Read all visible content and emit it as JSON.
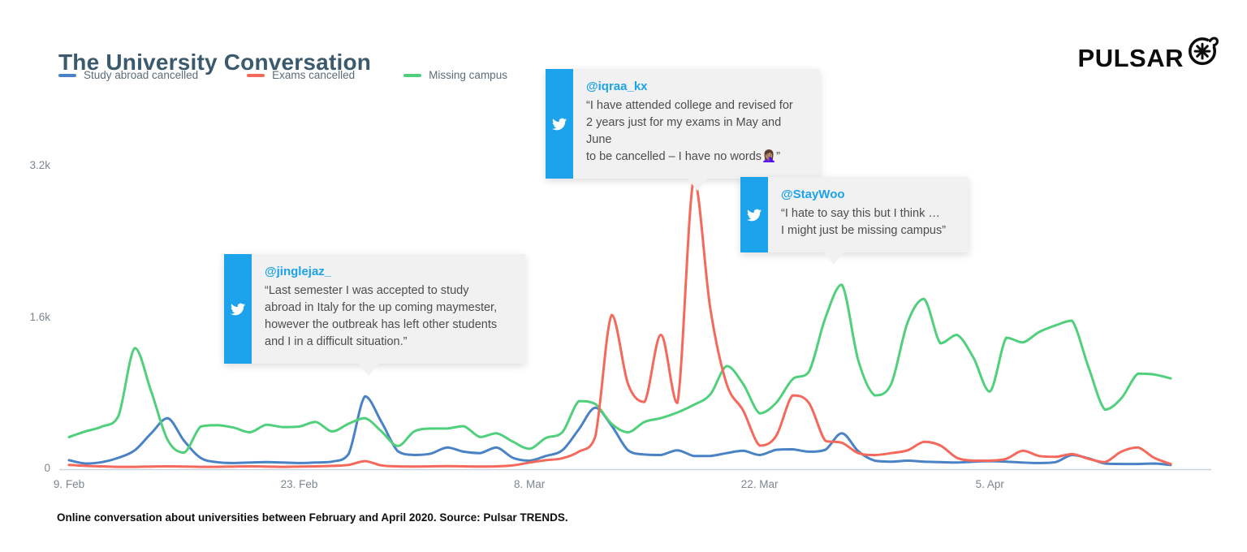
{
  "title": "The University Conversation",
  "logo": {
    "text": "PULSAR",
    "mark_icon": "asterisk-circle-icon"
  },
  "colors": {
    "title_ink": "#3b5a6e",
    "twitter_blue": "#1ca3ec",
    "axis_line": "#c9d6e2",
    "study_abroad_blue": "#4a82c6",
    "exams_red": "#f4695c",
    "missing_campus_green": "#50d07c"
  },
  "tweets": [
    {
      "handle": "@iqraa_kx",
      "text": "“I have attended college and revised for\n2 years just for my exams in May and June\nto be cancelled – I have no words🤦🏽‍♀️”"
    },
    {
      "handle": "@StayWoo",
      "text": "“I hate to say this but I think …\nI might just be missing campus”"
    },
    {
      "handle": "@jinglejaz_",
      "text": "“Last semester I was accepted to study\nabroad in Italy for the up coming maymester,\nhowever the outbreak has left other students\nand I in a difficult situation.”"
    }
  ],
  "caption": "Online conversation about universities between February and April 2020. Source: Pulsar TRENDS.",
  "chart_data": {
    "type": "line",
    "title": "The University Conversation",
    "x_start_date": "2020-02-09",
    "x_step_days": 1,
    "x_ticks": [
      {
        "day": 0,
        "label": "9. Feb"
      },
      {
        "day": 14,
        "label": "23. Feb"
      },
      {
        "day": 28,
        "label": "8. Mar"
      },
      {
        "day": 42,
        "label": "22. Mar"
      },
      {
        "day": 56,
        "label": "5. Apr"
      }
    ],
    "y_ticks": [
      {
        "value": 0,
        "label": "0"
      },
      {
        "value": 1600,
        "label": "1.6k"
      },
      {
        "value": 3200,
        "label": "3.2k"
      }
    ],
    "ylim": [
      0,
      3200
    ],
    "grid": false,
    "legend_position": "top-left",
    "series": [
      {
        "name": "Study abroad cancelled",
        "color": "#4a82c6",
        "values": [
          95,
          60,
          75,
          120,
          200,
          380,
          540,
          300,
          120,
          75,
          65,
          70,
          75,
          70,
          65,
          70,
          80,
          160,
          770,
          500,
          190,
          150,
          165,
          230,
          185,
          170,
          230,
          120,
          90,
          140,
          200,
          420,
          650,
          460,
          200,
          155,
          150,
          200,
          140,
          140,
          170,
          195,
          150,
          205,
          210,
          185,
          205,
          380,
          190,
          90,
          80,
          90,
          80,
          75,
          70,
          80,
          85,
          80,
          70,
          65,
          75,
          150,
          115,
          60,
          55,
          55,
          60,
          45
        ]
      },
      {
        "name": "Exams cancelled",
        "color": "#f4695c",
        "values": [
          45,
          35,
          30,
          25,
          25,
          28,
          30,
          28,
          25,
          25,
          28,
          30,
          28,
          25,
          28,
          30,
          35,
          45,
          85,
          40,
          30,
          28,
          30,
          32,
          30,
          28,
          30,
          40,
          70,
          95,
          115,
          185,
          340,
          1630,
          900,
          710,
          1420,
          700,
          3070,
          1700,
          900,
          620,
          250,
          350,
          780,
          700,
          300,
          280,
          170,
          150,
          170,
          200,
          290,
          250,
          120,
          90,
          90,
          110,
          195,
          140,
          130,
          160,
          110,
          75,
          185,
          230,
          120,
          55
        ]
      },
      {
        "name": "Missing campus",
        "color": "#50d07c",
        "values": [
          340,
          400,
          450,
          560,
          1280,
          820,
          310,
          175,
          450,
          465,
          440,
          390,
          470,
          445,
          450,
          500,
          400,
          480,
          540,
          400,
          245,
          400,
          430,
          430,
          455,
          340,
          380,
          290,
          215,
          330,
          390,
          720,
          690,
          480,
          390,
          500,
          540,
          600,
          680,
          790,
          1090,
          900,
          590,
          700,
          950,
          1030,
          1600,
          1950,
          1150,
          780,
          900,
          1550,
          1800,
          1330,
          1420,
          1180,
          820,
          1390,
          1340,
          1450,
          1520,
          1570,
          1080,
          630,
          750,
          1010,
          1000,
          960
        ]
      }
    ]
  }
}
